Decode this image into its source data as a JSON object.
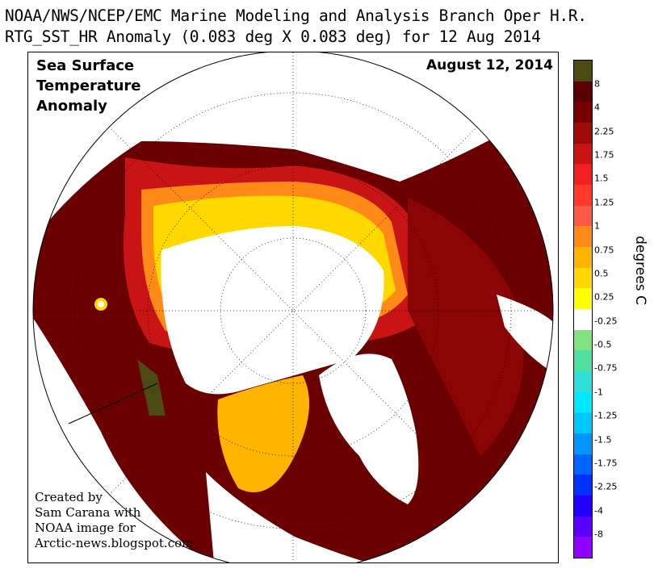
{
  "header": {
    "line1": "NOAA/NWS/NCEP/EMC Marine Modeling and Analysis Branch Oper H.R.",
    "line2": "RTG_SST_HR Anomaly (0.083 deg X 0.083 deg) for 12 Aug 2014"
  },
  "map": {
    "title_lines": [
      "Sea Surface",
      "Temperature",
      "Anomaly"
    ],
    "date": "August 12, 2014",
    "credit_lines": [
      "Created by",
      "Sam Carana with",
      "NOAA image for",
      "Arctic-news.blogspot.com"
    ]
  },
  "legend": {
    "units": "degrees C",
    "swatches": [
      {
        "color": "#4a4a12"
      },
      {
        "color": "#5a0000"
      },
      {
        "color": "#7a0000"
      },
      {
        "color": "#9e0a0a"
      },
      {
        "color": "#c81414"
      },
      {
        "color": "#f02020"
      },
      {
        "color": "#ff3a2a"
      },
      {
        "color": "#ff5a48"
      },
      {
        "color": "#ff8a18"
      },
      {
        "color": "#ffb400"
      },
      {
        "color": "#ffd800"
      },
      {
        "color": "#ffff00"
      },
      {
        "color": "#ffffff"
      },
      {
        "color": "#7fe27f"
      },
      {
        "color": "#50e0a0"
      },
      {
        "color": "#30e0d8"
      },
      {
        "color": "#00e8ff"
      },
      {
        "color": "#00c8ff"
      },
      {
        "color": "#0096ff"
      },
      {
        "color": "#0064ff"
      },
      {
        "color": "#0032ff"
      },
      {
        "color": "#2000ff"
      },
      {
        "color": "#5a00ff"
      },
      {
        "color": "#9000ff"
      }
    ],
    "ticks": [
      "8",
      "4",
      "2.25",
      "1.75",
      "1.5",
      "1.25",
      "1",
      "0.75",
      "0.5",
      "0.25",
      "-0.25",
      "-0.5",
      "-0.75",
      "-1",
      "-1.25",
      "-1.5",
      "-1.75",
      "-2.25",
      "-4",
      "-8"
    ]
  },
  "colors": {
    "anomaly_high": "#6a0000",
    "anomaly_mid": "#d01a10",
    "anomaly_low": "#ffcc00",
    "ice": "#ffffff",
    "land_dark": "#4a4a12"
  }
}
